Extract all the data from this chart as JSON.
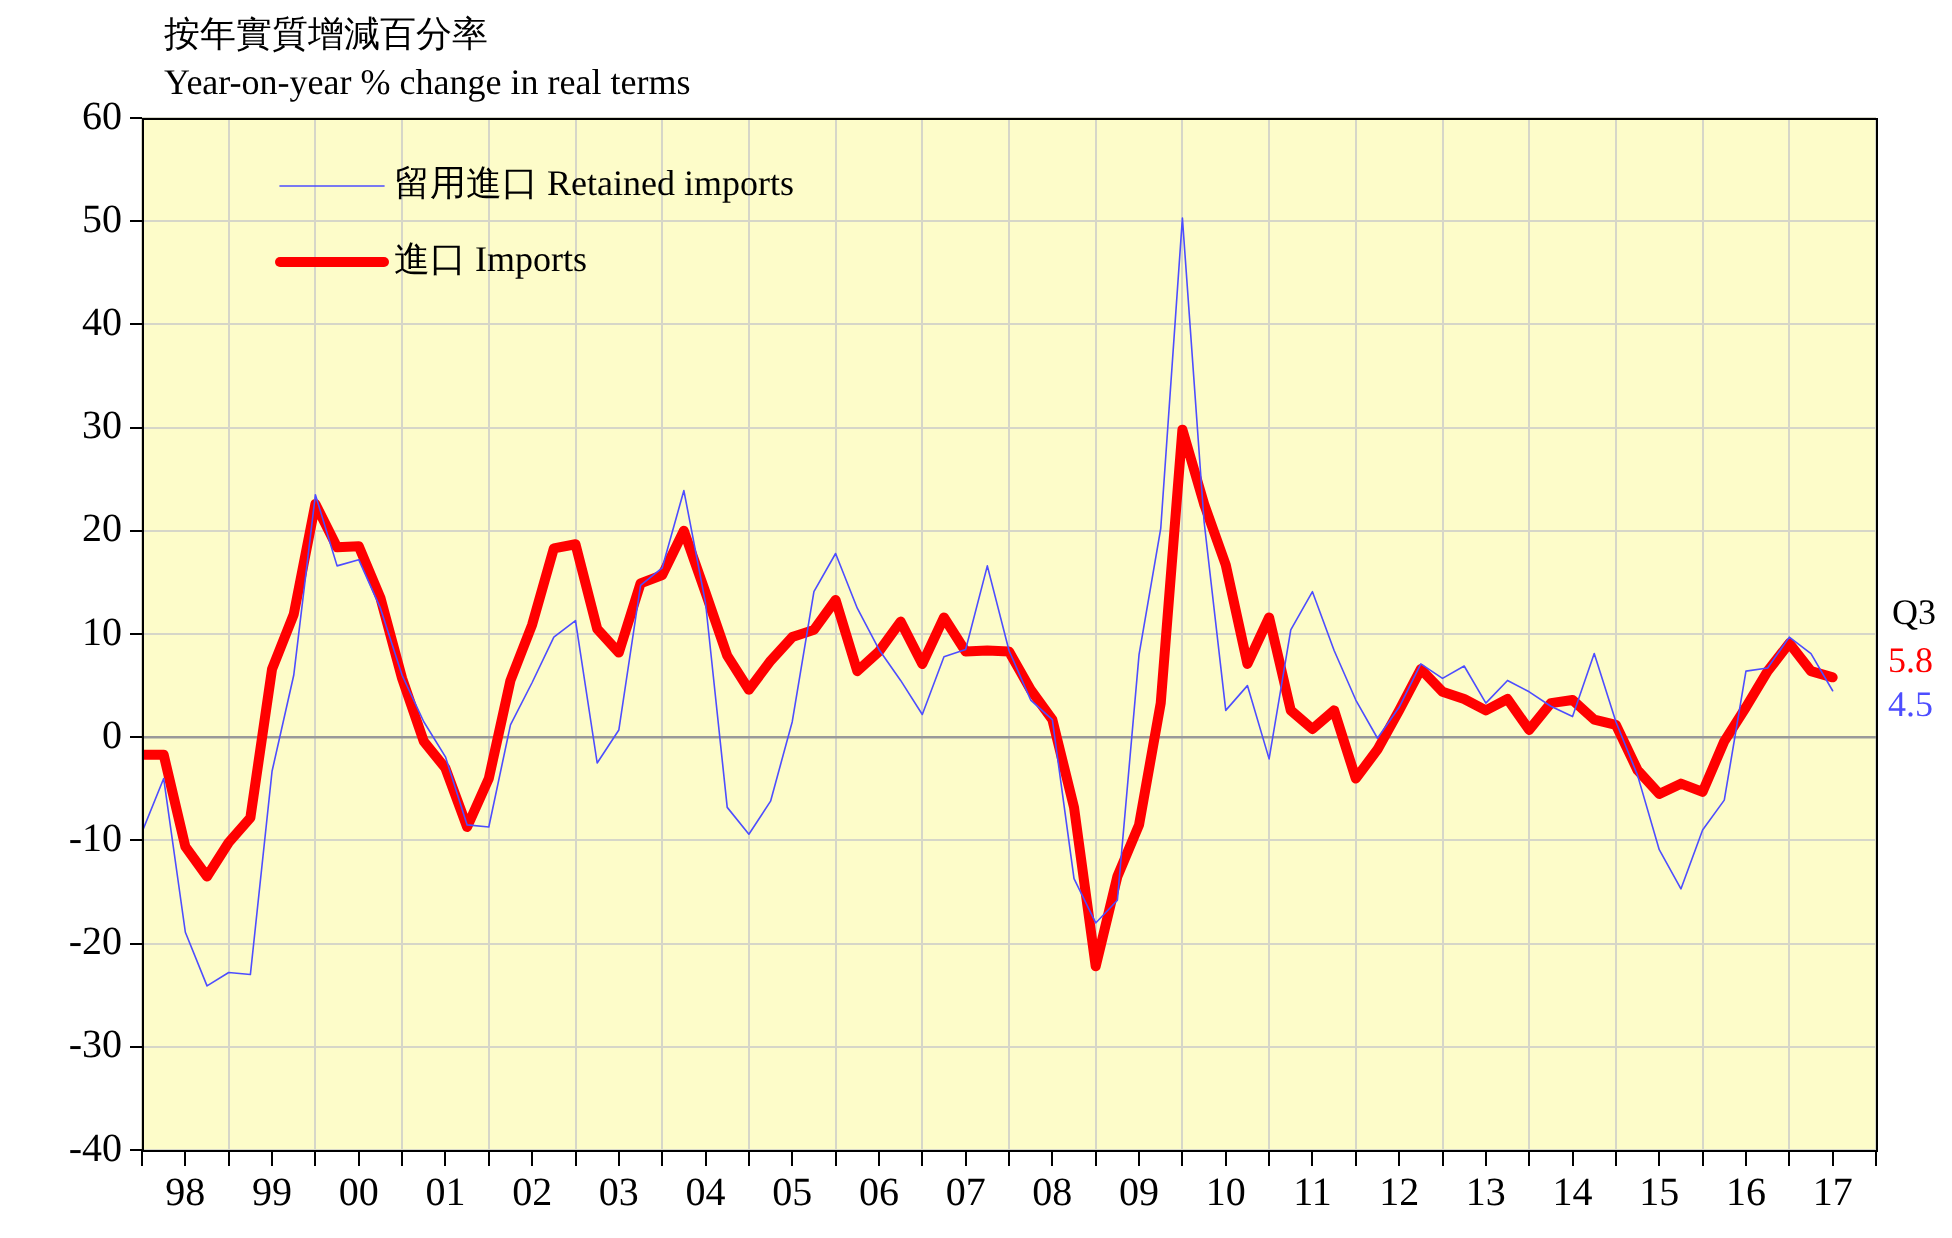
{
  "chart_data": {
    "type": "line",
    "title": "按年實質增減百分率",
    "subtitle": "Year-on-year % change in real terms",
    "categories": [
      null,
      null,
      "98",
      null,
      null,
      null,
      "99",
      null,
      null,
      null,
      "00",
      null,
      null,
      null,
      "01",
      null,
      null,
      null,
      "02",
      null,
      null,
      null,
      "03",
      null,
      null,
      null,
      "04",
      null,
      null,
      null,
      "05",
      null,
      null,
      null,
      "06",
      null,
      null,
      null,
      "07",
      null,
      null,
      null,
      "08",
      null,
      null,
      null,
      "09",
      null,
      null,
      null,
      "10",
      null,
      null,
      null,
      "11",
      null,
      null,
      null,
      "12",
      null,
      null,
      null,
      "13",
      null,
      null,
      null,
      "14",
      null,
      null,
      null,
      "15",
      null,
      null,
      null,
      "16",
      null,
      null,
      null,
      "17"
    ],
    "series": [
      {
        "name": "留用進口 Retained imports",
        "color": "#4d4dff",
        "values": [
          -9.2,
          -4.0,
          -18.9,
          -24.1,
          -22.8,
          -23.0,
          -3.3,
          6.0,
          23.5,
          16.6,
          17.2,
          12.5,
          6.0,
          1.5,
          -1.9,
          -8.5,
          -8.7,
          1.2,
          5.3,
          9.7,
          11.3,
          -2.5,
          0.7,
          14.7,
          16.4,
          23.9,
          13.0,
          -6.8,
          -9.4,
          -6.2,
          1.5,
          14.1,
          17.8,
          12.5,
          8.5,
          5.5,
          2.2,
          7.8,
          8.5,
          16.6,
          8.4,
          3.6,
          1.7,
          -13.7,
          -18.0,
          -15.8,
          8.0,
          20.2,
          50.3,
          20.9,
          2.6,
          5.0,
          -2.1,
          10.4,
          14.1,
          8.4,
          3.6,
          -0.1,
          2.9,
          7.1,
          5.7,
          6.9,
          3.3,
          5.5,
          4.4,
          3.0,
          2.0,
          8.1,
          1.5,
          -3.7,
          -10.9,
          -14.7,
          -9.0,
          -6.1,
          6.4,
          6.7,
          9.7,
          8.1,
          4.5
        ],
        "value_labels": [
          null,
          null,
          null,
          null,
          null,
          null,
          null,
          null,
          null,
          null,
          null,
          null,
          null,
          null,
          null,
          null,
          null,
          null,
          null,
          null,
          null,
          null,
          null,
          null,
          null,
          null,
          null,
          null,
          null,
          null,
          null,
          null,
          null,
          null,
          null,
          null,
          null,
          null,
          null,
          null,
          null,
          null,
          null,
          null,
          null,
          null,
          null,
          null,
          null,
          null,
          null,
          null,
          null,
          null,
          null,
          null,
          null,
          null,
          null,
          null,
          null,
          null,
          null,
          null,
          null,
          null,
          null,
          null,
          null,
          null,
          null,
          null,
          null,
          null,
          null,
          null,
          null,
          null,
          "4.5"
        ]
      },
      {
        "name": "進口 Imports",
        "color": "#ff0000",
        "values": [
          -1.7,
          -1.7,
          -10.6,
          -13.5,
          -10.2,
          -7.8,
          6.6,
          11.9,
          22.6,
          18.4,
          18.5,
          13.5,
          5.7,
          -0.4,
          -3.0,
          -8.7,
          -4.0,
          5.5,
          10.9,
          18.3,
          18.7,
          10.5,
          8.2,
          14.9,
          15.7,
          20.0,
          14.0,
          7.9,
          4.6,
          7.4,
          9.7,
          10.4,
          13.3,
          6.4,
          8.3,
          11.2,
          7.1,
          11.6,
          8.3,
          8.4,
          8.3,
          4.6,
          1.7,
          -6.8,
          -22.2,
          -13.5,
          -8.5,
          3.3,
          29.8,
          22.6,
          16.7,
          7.1,
          11.6,
          2.6,
          0.8,
          2.6,
          -4.0,
          -1.2,
          2.6,
          6.6,
          4.4,
          3.7,
          2.6,
          3.7,
          0.7,
          3.3,
          3.6,
          1.7,
          1.2,
          -3.2,
          -5.5,
          -4.5,
          -5.3,
          -0.4,
          2.9,
          6.4,
          9.1,
          6.4,
          5.8
        ],
        "value_labels": [
          null,
          null,
          null,
          null,
          null,
          null,
          null,
          null,
          null,
          null,
          null,
          null,
          null,
          null,
          null,
          null,
          null,
          null,
          null,
          null,
          null,
          null,
          null,
          null,
          null,
          null,
          null,
          null,
          null,
          null,
          null,
          null,
          null,
          null,
          null,
          null,
          null,
          null,
          null,
          null,
          null,
          null,
          null,
          null,
          null,
          null,
          null,
          null,
          null,
          null,
          null,
          null,
          null,
          null,
          null,
          null,
          null,
          null,
          null,
          null,
          null,
          null,
          null,
          null,
          null,
          null,
          null,
          null,
          null,
          null,
          null,
          null,
          null,
          null,
          null,
          null,
          null,
          null,
          "5.8"
        ]
      }
    ],
    "ylim": [
      -40,
      60
    ],
    "yticks": [
      -40,
      -30,
      -20,
      -10,
      0,
      10,
      20,
      30,
      40,
      50,
      60
    ],
    "ref_lines": [
      {
        "axis": "y",
        "value": 0,
        "color": "#999999"
      }
    ],
    "annotations": [
      "Q3"
    ],
    "grid": true,
    "legend": "top left"
  }
}
